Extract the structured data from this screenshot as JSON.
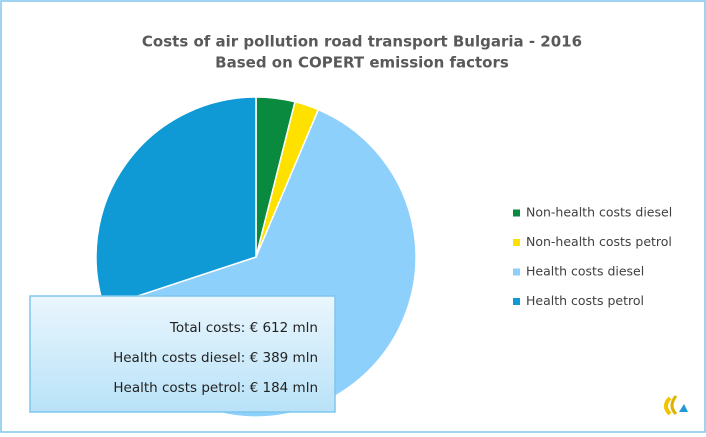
{
  "chart_data": {
    "type": "pie",
    "title": "Costs of air pollution road transport Bulgaria - 2016",
    "subtitle": "Based on COPERT emission factors",
    "categories": [
      "Non-health costs diesel",
      "Non-health costs petrol",
      "Health costs diesel",
      "Health costs petrol"
    ],
    "values": [
      24,
      15,
      389,
      184
    ],
    "colors": [
      "#0a8a3e",
      "#ffe100",
      "#8ed0fc",
      "#0f9ad6"
    ],
    "legend": "right",
    "annotations": [
      "Total costs: € 612 mln",
      "Health costs diesel: € 389 mln",
      "Health costs petrol: € 184 mln"
    ]
  }
}
